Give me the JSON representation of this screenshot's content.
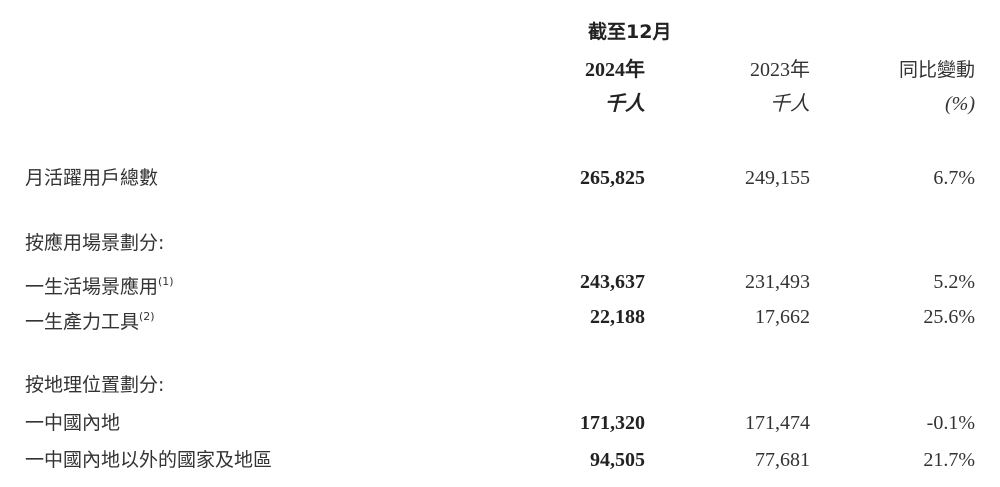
{
  "header": {
    "period": "截至12月",
    "col1_year": "2024年",
    "col2_year": "2023年",
    "col3_title": "同比變動",
    "col1_unit": "千人",
    "col2_unit": "千人",
    "col3_unit": "(%)"
  },
  "rows": [
    {
      "label": "月活躍用戶總數",
      "note": "",
      "v2024": "265,825",
      "v2023": "249,155",
      "change": "6.7%"
    },
    {
      "label": "按應用場景劃分:",
      "note": "",
      "v2024": "",
      "v2023": "",
      "change": ""
    },
    {
      "label": "一生活場景應用",
      "note": "(1)",
      "v2024": "243,637",
      "v2023": "231,493",
      "change": "5.2%"
    },
    {
      "label": "一生產力工具",
      "note": "(2)",
      "v2024": "22,188",
      "v2023": "17,662",
      "change": "25.6%"
    },
    {
      "label": "按地理位置劃分:",
      "note": "",
      "v2024": "",
      "v2023": "",
      "change": ""
    },
    {
      "label": "一中國內地",
      "note": "",
      "v2024": "171,320",
      "v2023": "171,474",
      "change": "-0.1%"
    },
    {
      "label": "一中國內地以外的國家及地區",
      "note": "",
      "v2024": "94,505",
      "v2023": "77,681",
      "change": "21.7%"
    }
  ]
}
